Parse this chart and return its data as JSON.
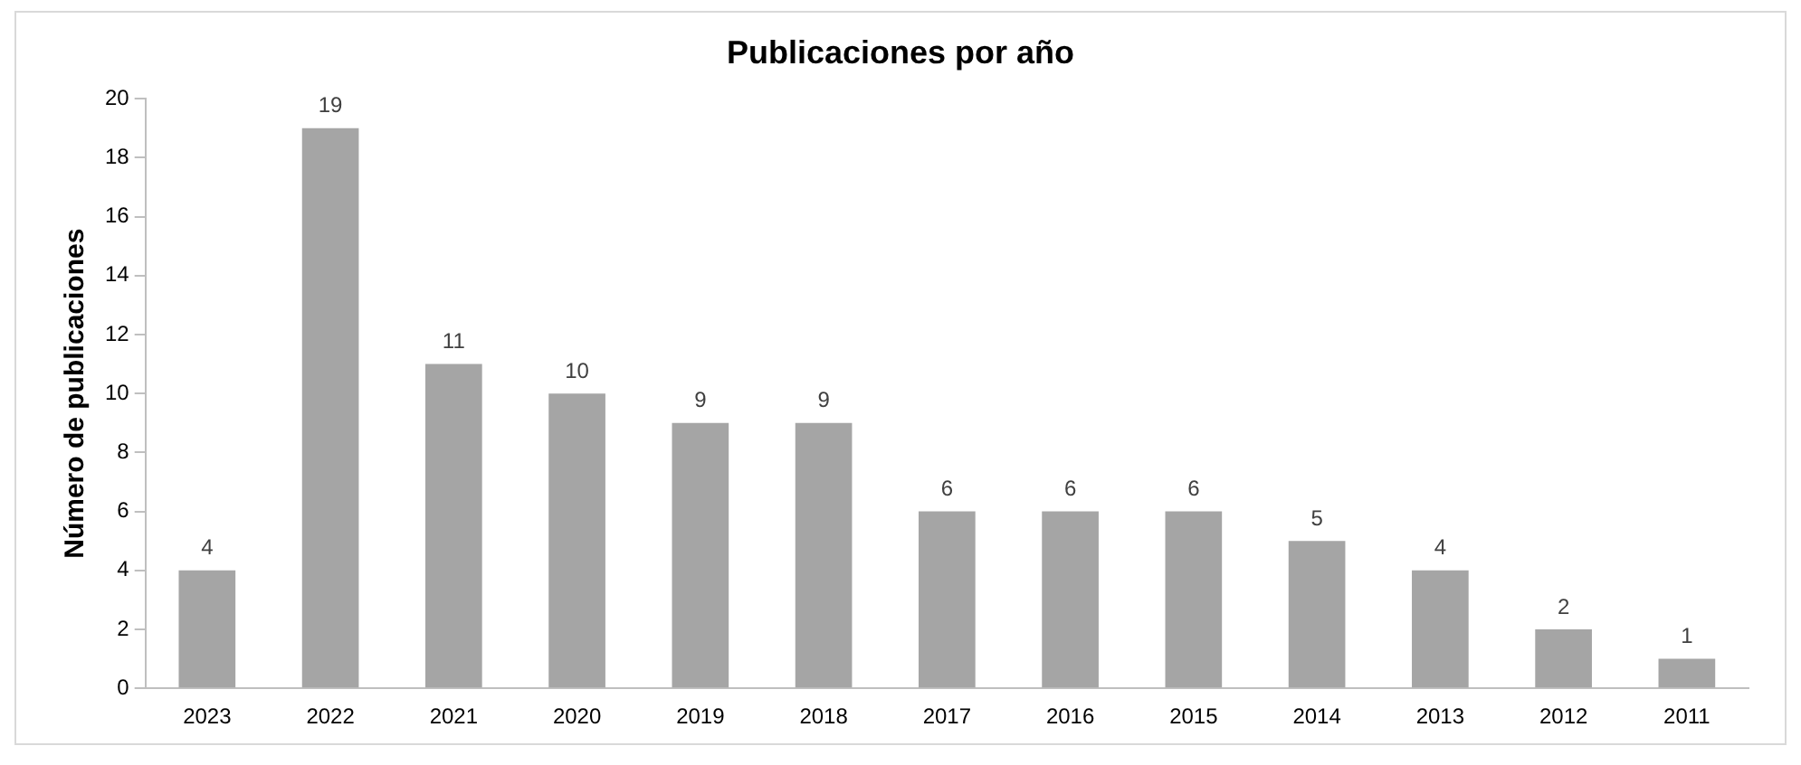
{
  "chart_data": {
    "type": "bar",
    "title": "Publicaciones por año",
    "ylabel": "Número de publicaciones",
    "categories": [
      "2023",
      "2022",
      "2021",
      "2020",
      "2019",
      "2018",
      "2017",
      "2016",
      "2015",
      "2014",
      "2013",
      "2012",
      "2011"
    ],
    "values": [
      4,
      19,
      11,
      10,
      9,
      9,
      6,
      6,
      6,
      5,
      4,
      2,
      1
    ],
    "color": "#a5a5a5",
    "ylim": [
      0,
      20
    ],
    "yticks": [
      0,
      2,
      4,
      6,
      8,
      10,
      12,
      14,
      16,
      18,
      20
    ],
    "grid": false,
    "legend": false,
    "data_labels": true
  }
}
